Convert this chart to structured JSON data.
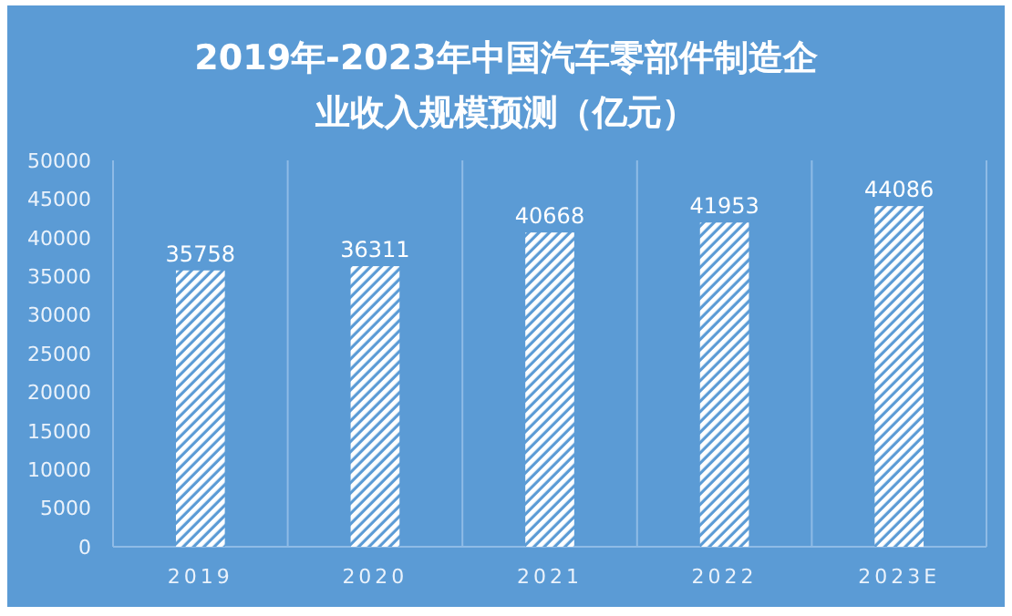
{
  "chart_data": {
    "type": "bar",
    "title": "2019年-2023年中国汽车零部件制造企业收入规模预测（亿元）",
    "categories": [
      "2019",
      "2020",
      "2021",
      "2022",
      "2023E"
    ],
    "values": [
      35758,
      36311,
      40668,
      41953,
      44086
    ],
    "color": "#ffffff",
    "ylim": [
      0,
      50000
    ],
    "yticks": [
      0,
      5000,
      10000,
      15000,
      20000,
      25000,
      30000,
      35000,
      40000,
      45000,
      50000
    ],
    "grid": "x",
    "data_labels": true
  }
}
